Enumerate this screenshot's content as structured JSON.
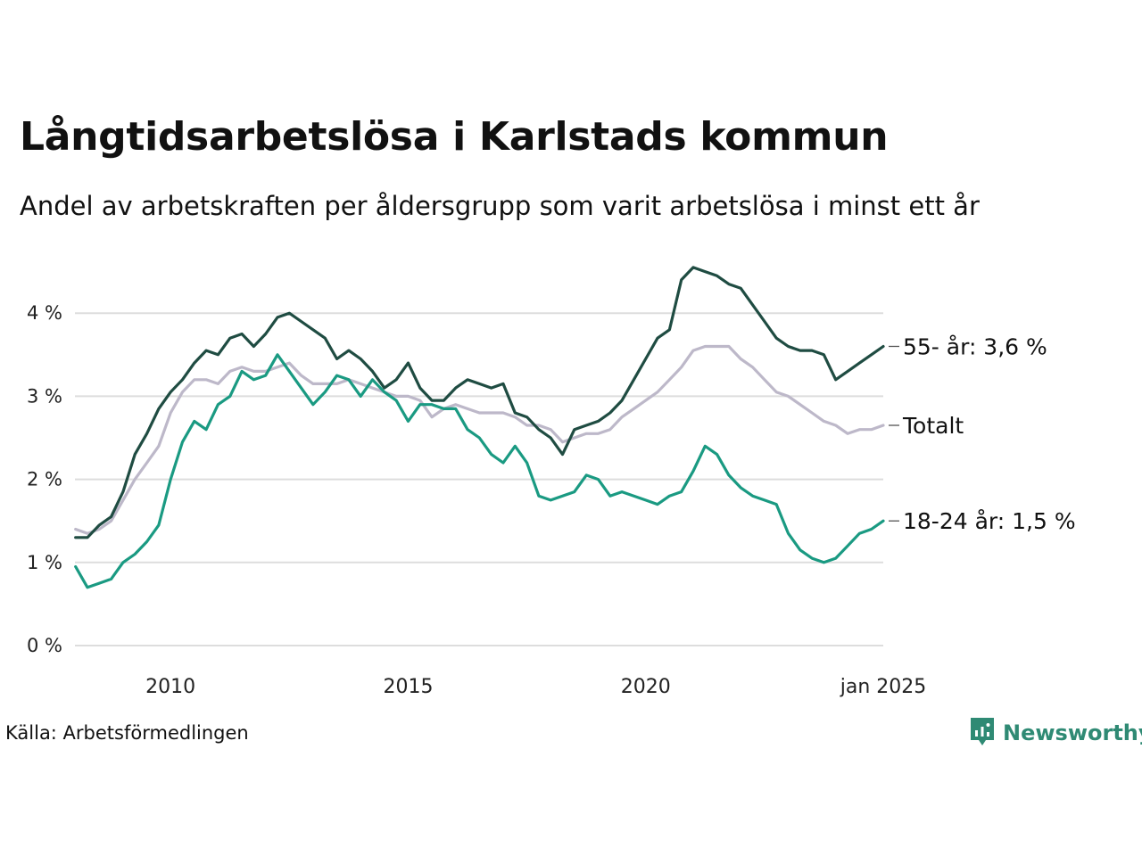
{
  "header": {
    "title": "Långtidsarbetslösa i Karlstads kommun",
    "subtitle": "Andel av arbetskraften per åldersgrupp som varit arbetslösa i minst ett år"
  },
  "footer": {
    "source": "Källa: Arbetsförmedlingen",
    "brand": "Newsworthy"
  },
  "colors": {
    "age55": "#1f4c42",
    "total": "#bdb8c9",
    "age18_24": "#1a9a82",
    "grid": "#dddddd",
    "brand": "#2f8a74"
  },
  "chart_data": {
    "type": "line",
    "title": "Långtidsarbetslösa i Karlstads kommun",
    "subtitle": "Andel av arbetskraften per åldersgrupp som varit arbetslösa i minst ett år",
    "xlabel": "",
    "ylabel": "",
    "xlim": [
      2008.0,
      2025.0
    ],
    "ylim": [
      0,
      4.5
    ],
    "grid": true,
    "yticks": [
      {
        "value": 0,
        "label": "0 %"
      },
      {
        "value": 1,
        "label": "1 %"
      },
      {
        "value": 2,
        "label": "2 %"
      },
      {
        "value": 3,
        "label": "3 %"
      },
      {
        "value": 4,
        "label": "4 %"
      }
    ],
    "xticks": [
      {
        "value": 2010,
        "label": "2010"
      },
      {
        "value": 2015,
        "label": "2015"
      },
      {
        "value": 2020,
        "label": "2020"
      },
      {
        "value": 2025,
        "label": "jan 2025"
      }
    ],
    "series": [
      {
        "name": "55- år",
        "label": "55- år: 3,6 %",
        "color": "#1f4c42",
        "x": [
          2008.0,
          2008.25,
          2008.5,
          2008.75,
          2009.0,
          2009.25,
          2009.5,
          2009.75,
          2010.0,
          2010.25,
          2010.5,
          2010.75,
          2011.0,
          2011.25,
          2011.5,
          2011.75,
          2012.0,
          2012.25,
          2012.5,
          2012.75,
          2013.0,
          2013.25,
          2013.5,
          2013.75,
          2014.0,
          2014.25,
          2014.5,
          2014.75,
          2015.0,
          2015.25,
          2015.5,
          2015.75,
          2016.0,
          2016.25,
          2016.5,
          2016.75,
          2017.0,
          2017.25,
          2017.5,
          2017.75,
          2018.0,
          2018.25,
          2018.5,
          2018.75,
          2019.0,
          2019.25,
          2019.5,
          2019.75,
          2020.0,
          2020.25,
          2020.5,
          2020.75,
          2021.0,
          2021.25,
          2021.5,
          2021.75,
          2022.0,
          2022.25,
          2022.5,
          2022.75,
          2023.0,
          2023.25,
          2023.5,
          2023.75,
          2024.0,
          2024.25,
          2024.5,
          2024.75,
          2025.0
        ],
        "values": [
          1.3,
          1.3,
          1.45,
          1.55,
          1.85,
          2.3,
          2.55,
          2.85,
          3.05,
          3.2,
          3.4,
          3.55,
          3.5,
          3.7,
          3.75,
          3.6,
          3.75,
          3.95,
          4.0,
          3.9,
          3.8,
          3.7,
          3.45,
          3.55,
          3.45,
          3.3,
          3.1,
          3.2,
          3.4,
          3.1,
          2.95,
          2.95,
          3.1,
          3.2,
          3.15,
          3.1,
          3.15,
          2.8,
          2.75,
          2.6,
          2.5,
          2.3,
          2.6,
          2.65,
          2.7,
          2.8,
          2.95,
          3.2,
          3.45,
          3.7,
          3.8,
          4.4,
          4.55,
          4.5,
          4.45,
          4.35,
          4.3,
          4.1,
          3.9,
          3.7,
          3.6,
          3.55,
          3.55,
          3.5,
          3.2,
          3.3,
          3.4,
          3.5,
          3.6
        ]
      },
      {
        "name": "Totalt",
        "label": "Totalt",
        "color": "#bdb8c9",
        "x": [
          2008.0,
          2008.25,
          2008.5,
          2008.75,
          2009.0,
          2009.25,
          2009.5,
          2009.75,
          2010.0,
          2010.25,
          2010.5,
          2010.75,
          2011.0,
          2011.25,
          2011.5,
          2011.75,
          2012.0,
          2012.25,
          2012.5,
          2012.75,
          2013.0,
          2013.25,
          2013.5,
          2013.75,
          2014.0,
          2014.25,
          2014.5,
          2014.75,
          2015.0,
          2015.25,
          2015.5,
          2015.75,
          2016.0,
          2016.25,
          2016.5,
          2016.75,
          2017.0,
          2017.25,
          2017.5,
          2017.75,
          2018.0,
          2018.25,
          2018.5,
          2018.75,
          2019.0,
          2019.25,
          2019.5,
          2019.75,
          2020.0,
          2020.25,
          2020.5,
          2020.75,
          2021.0,
          2021.25,
          2021.5,
          2021.75,
          2022.0,
          2022.25,
          2022.5,
          2022.75,
          2023.0,
          2023.25,
          2023.5,
          2023.75,
          2024.0,
          2024.25,
          2024.5,
          2024.75,
          2025.0
        ],
        "values": [
          1.4,
          1.35,
          1.4,
          1.5,
          1.75,
          2.0,
          2.2,
          2.4,
          2.8,
          3.05,
          3.2,
          3.2,
          3.15,
          3.3,
          3.35,
          3.3,
          3.3,
          3.35,
          3.4,
          3.25,
          3.15,
          3.15,
          3.15,
          3.2,
          3.15,
          3.1,
          3.05,
          3.0,
          3.0,
          2.95,
          2.75,
          2.85,
          2.9,
          2.85,
          2.8,
          2.8,
          2.8,
          2.75,
          2.65,
          2.65,
          2.6,
          2.45,
          2.5,
          2.55,
          2.55,
          2.6,
          2.75,
          2.85,
          2.95,
          3.05,
          3.2,
          3.35,
          3.55,
          3.6,
          3.6,
          3.6,
          3.45,
          3.35,
          3.2,
          3.05,
          3.0,
          2.9,
          2.8,
          2.7,
          2.65,
          2.55,
          2.6,
          2.6,
          2.65
        ]
      },
      {
        "name": "18-24 år",
        "label": "18-24 år: 1,5 %",
        "color": "#1a9a82",
        "x": [
          2008.0,
          2008.25,
          2008.5,
          2008.75,
          2009.0,
          2009.25,
          2009.5,
          2009.75,
          2010.0,
          2010.25,
          2010.5,
          2010.75,
          2011.0,
          2011.25,
          2011.5,
          2011.75,
          2012.0,
          2012.25,
          2012.5,
          2012.75,
          2013.0,
          2013.25,
          2013.5,
          2013.75,
          2014.0,
          2014.25,
          2014.5,
          2014.75,
          2015.0,
          2015.25,
          2015.5,
          2015.75,
          2016.0,
          2016.25,
          2016.5,
          2016.75,
          2017.0,
          2017.25,
          2017.5,
          2017.75,
          2018.0,
          2018.25,
          2018.5,
          2018.75,
          2019.0,
          2019.25,
          2019.5,
          2019.75,
          2020.0,
          2020.25,
          2020.5,
          2020.75,
          2021.0,
          2021.25,
          2021.5,
          2021.75,
          2022.0,
          2022.25,
          2022.5,
          2022.75,
          2023.0,
          2023.25,
          2023.5,
          2023.75,
          2024.0,
          2024.25,
          2024.5,
          2024.75,
          2025.0
        ],
        "values": [
          0.95,
          0.7,
          0.75,
          0.8,
          1.0,
          1.1,
          1.25,
          1.45,
          2.0,
          2.45,
          2.7,
          2.6,
          2.9,
          3.0,
          3.3,
          3.2,
          3.25,
          3.5,
          3.3,
          3.1,
          2.9,
          3.05,
          3.25,
          3.2,
          3.0,
          3.2,
          3.05,
          2.95,
          2.7,
          2.9,
          2.9,
          2.85,
          2.85,
          2.6,
          2.5,
          2.3,
          2.2,
          2.4,
          2.2,
          1.8,
          1.75,
          1.8,
          1.85,
          2.05,
          2.0,
          1.8,
          1.85,
          1.8,
          1.75,
          1.7,
          1.8,
          1.85,
          2.1,
          2.4,
          2.3,
          2.05,
          1.9,
          1.8,
          1.75,
          1.7,
          1.35,
          1.15,
          1.05,
          1.0,
          1.05,
          1.2,
          1.35,
          1.4,
          1.5
        ]
      }
    ]
  }
}
